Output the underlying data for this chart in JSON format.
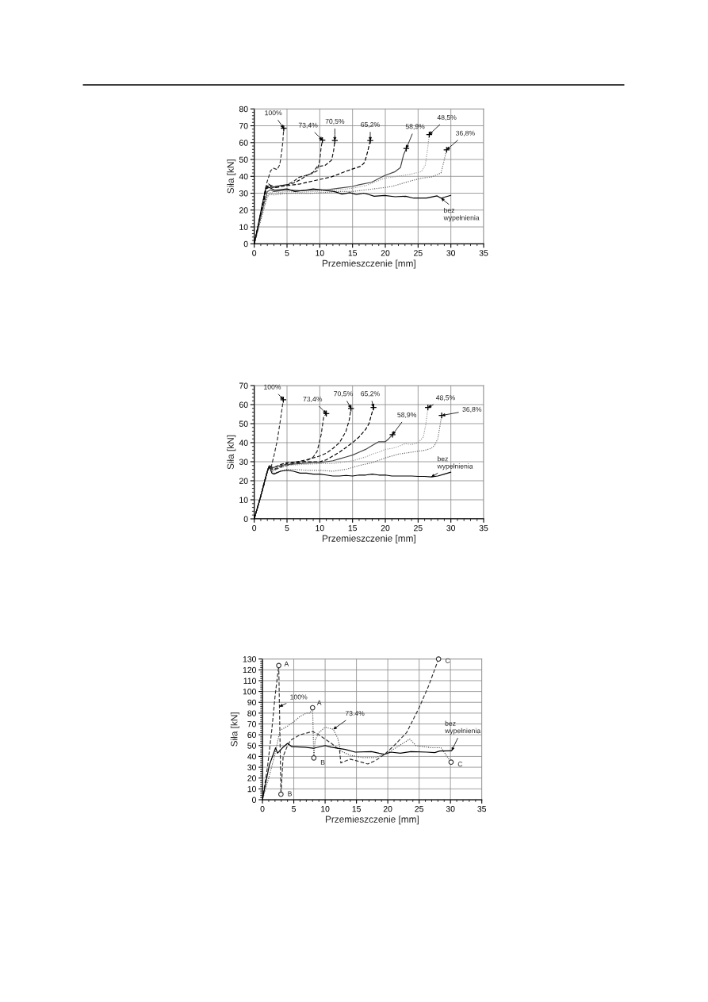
{
  "chart_data": [
    {
      "type": "line",
      "xlabel": "Przemieszczenie [mm]",
      "ylabel": "Siła [kN]",
      "xlim": [
        0,
        35
      ],
      "ylim": [
        0,
        80
      ],
      "xticks": [
        0,
        5,
        10,
        15,
        20,
        25,
        30,
        35
      ],
      "yticks": [
        0,
        10,
        20,
        30,
        40,
        50,
        60,
        70,
        80
      ],
      "grid": true,
      "series": [
        {
          "color": "#333333",
          "line_style": "dashed",
          "x": [
            0,
            0.5,
            1.0,
            1.5,
            1.9,
            2.5,
            2.9,
            3.5,
            3.9,
            4.15,
            4.35,
            4.5
          ],
          "values": [
            0,
            9,
            18,
            28,
            36,
            43.3,
            44.9,
            44,
            47,
            53.5,
            60,
            68.5
          ]
        },
        {
          "color": "#222222",
          "line_style": "dashed",
          "x": [
            0,
            0.5,
            1,
            1.5,
            1.8,
            2.2,
            2.7,
            3.3,
            3.9,
            5,
            6,
            6.8,
            7.8,
            8.8,
            9.6,
            10.0,
            10.2,
            10.4
          ],
          "values": [
            0,
            9,
            18,
            28,
            34,
            35.5,
            34,
            33.4,
            34.5,
            35,
            37,
            39.4,
            40.5,
            41.7,
            43.3,
            49.6,
            57,
            61.5
          ]
        },
        {
          "color": "#111111",
          "line_style": "dashed",
          "x": [
            0,
            0.5,
            1,
            1.5,
            1.8,
            2.2,
            2.7,
            3.3,
            4,
            5,
            6,
            7,
            8,
            9,
            9.6,
            10.8,
            11.8,
            12.1,
            12.3
          ],
          "values": [
            0,
            9,
            18,
            27,
            33,
            35,
            34.5,
            34,
            34.5,
            35,
            36,
            38,
            40.5,
            42.5,
            45.7,
            46.5,
            49.6,
            55,
            61.2
          ]
        },
        {
          "color": "#000000",
          "line_style": "dashed",
          "x": [
            0,
            0.5,
            1,
            1.5,
            1.8,
            2.2,
            2.7,
            3.5,
            5,
            7,
            9,
            11.8,
            14.2,
            16.25,
            16.85,
            17.3,
            17.7
          ],
          "values": [
            0,
            8,
            17,
            26,
            32,
            34.5,
            33.5,
            33.5,
            34.5,
            35.5,
            37.3,
            39.7,
            43.3,
            46,
            48.3,
            54.6,
            61.2
          ]
        },
        {
          "color": "#444444",
          "line_style": "solid",
          "x": [
            0,
            0.5,
            1,
            1.5,
            2,
            2.5,
            3,
            4,
            5,
            7,
            9,
            11,
            13,
            15,
            16,
            17.9,
            19.9,
            21.5,
            22.3,
            22.8,
            23.2
          ],
          "values": [
            0,
            8,
            16,
            24,
            31,
            32,
            31,
            31.5,
            32,
            31.5,
            32,
            32,
            33,
            34,
            35,
            36.5,
            40.5,
            42.8,
            45.2,
            53,
            56.5
          ]
        },
        {
          "color": "#999999",
          "line_style": "dotted",
          "x": [
            0,
            0.5,
            1,
            1.5,
            2,
            2.5,
            3,
            4,
            5,
            7,
            9,
            11,
            13,
            15,
            17,
            19.9,
            21,
            23.9,
            25.5,
            26.1,
            26.5,
            26.7
          ],
          "values": [
            0,
            7,
            15,
            22,
            29,
            30.5,
            30,
            30.5,
            31,
            30.5,
            31,
            31.5,
            32,
            33,
            34.5,
            38.9,
            39.5,
            41.3,
            42.8,
            46.7,
            57.7,
            64.8
          ]
        },
        {
          "color": "#666666",
          "line_style": "dotted",
          "x": [
            0,
            0.5,
            1,
            1.5,
            2,
            2.5,
            3,
            4,
            5,
            7,
            9,
            11,
            13,
            15,
            17,
            19.9,
            21,
            23.9,
            25.5,
            27.1,
            28.5,
            28.9,
            29.35
          ],
          "values": [
            0,
            7,
            14,
            21,
            28,
            29.5,
            29,
            29.5,
            30,
            30,
            30,
            30.5,
            31,
            31,
            32,
            33.4,
            34,
            37.3,
            38.9,
            39.7,
            42,
            48.3,
            55.7
          ]
        },
        {
          "color": "#000000",
          "line_style": "solid",
          "x": [
            0,
            0.5,
            1,
            1.73,
            2.3,
            3.1,
            5,
            6.2,
            7.8,
            9,
            10.6,
            12.2,
            13.4,
            14.6,
            15.6,
            16.7,
            17.5,
            18.3,
            19.9,
            21.5,
            23.1,
            24.3,
            26.3,
            27.9,
            28.5,
            30
          ],
          "values": [
            0,
            9,
            19,
            32.6,
            33.4,
            31.8,
            32.6,
            31,
            31.8,
            32.6,
            31.8,
            31,
            29.5,
            30.3,
            29.2,
            30,
            29.2,
            28.2,
            28.7,
            27.9,
            28.2,
            27.1,
            27.1,
            28.4,
            27.1,
            28.7
          ]
        },
        {
          "type": "scatter",
          "color": "#000000",
          "marker": "cross",
          "x": [
            4.5,
            10.4,
            12.3,
            17.7,
            23.2,
            26.7,
            29.35
          ],
          "values": [
            68.5,
            61.5,
            61.2,
            61.2,
            56.5,
            64.8,
            55.7
          ]
        }
      ],
      "annotations": [
        {
          "text": "100%",
          "x": 4.5,
          "y": 68.5
        },
        {
          "text": "73,4%",
          "x": 10.4,
          "y": 61.5
        },
        {
          "text": "70,5%",
          "x": 12.3,
          "y": 61.2
        },
        {
          "text": "65,2%",
          "x": 17.7,
          "y": 61.2
        },
        {
          "text": "58,9%",
          "x": 23.2,
          "y": 56.5
        },
        {
          "text": "48,5%",
          "x": 26.7,
          "y": 64.8
        },
        {
          "text": "36,8%",
          "x": 29.35,
          "y": 55.7
        },
        {
          "text": "bez\nwypełnienia",
          "x": 28.5,
          "y": 27.1
        }
      ]
    },
    {
      "type": "line",
      "xlabel": "Przemieszczenie [mm]",
      "ylabel": "Siła [kN]",
      "xlim": [
        0,
        35
      ],
      "ylim": [
        0,
        70
      ],
      "xticks": [
        0,
        5,
        10,
        15,
        20,
        25,
        30,
        35
      ],
      "yticks": [
        0,
        10,
        20,
        30,
        40,
        50,
        60,
        70
      ],
      "grid": true,
      "series": [
        {
          "color": "#333333",
          "line_style": "dashed",
          "x": [
            0,
            0.5,
            1,
            1.5,
            2,
            2.3,
            2.6,
            3.0,
            3.5,
            4.0,
            4.44
          ],
          "values": [
            0,
            6,
            12,
            19,
            25,
            28,
            27.5,
            33,
            41,
            52,
            62.6
          ]
        },
        {
          "color": "#222222",
          "line_style": "dashed",
          "x": [
            0,
            0.5,
            1,
            1.5,
            2,
            2.3,
            2.7,
            3,
            4,
            5,
            6,
            7,
            8,
            9,
            9.6,
            10.2,
            10.6,
            11.0
          ],
          "values": [
            0,
            6,
            12,
            18,
            25,
            27.5,
            26,
            25.5,
            27,
            28,
            29,
            29.5,
            30.5,
            32.5,
            35.5,
            44,
            53.6,
            55.3
          ]
        },
        {
          "color": "#111111",
          "line_style": "dashed",
          "x": [
            0,
            1,
            2,
            2.3,
            2.7,
            3,
            4,
            5,
            6,
            8,
            10,
            11,
            12,
            13,
            13.5,
            14,
            14.5,
            14.76
          ],
          "values": [
            0,
            12,
            25,
            28,
            26.5,
            26,
            27.5,
            29,
            29.5,
            31,
            33,
            34.5,
            37,
            40,
            43,
            46,
            52,
            58
          ]
        },
        {
          "color": "#000000",
          "line_style": "dashed",
          "x": [
            0,
            1,
            2,
            2.3,
            2.7,
            3,
            4,
            5,
            7,
            9,
            10,
            11,
            12,
            13,
            14,
            15,
            16,
            17,
            17.5,
            18.2
          ],
          "values": [
            0,
            12,
            25,
            28,
            27,
            27,
            28.5,
            29.5,
            30,
            30,
            30,
            31,
            33,
            35,
            37.5,
            40,
            43,
            47,
            50,
            58.5
          ]
        },
        {
          "color": "#444444",
          "line_style": "solid",
          "x": [
            0,
            1,
            2,
            2.3,
            2.7,
            3,
            4,
            5,
            7,
            9,
            10,
            11,
            12,
            13,
            14,
            15,
            16,
            17,
            18,
            19,
            20,
            20.5,
            21.1
          ],
          "values": [
            0,
            12,
            25,
            28,
            26.5,
            27,
            28,
            28.5,
            29,
            29.5,
            29.5,
            30,
            30.5,
            31.5,
            32.5,
            33.5,
            35,
            36.5,
            38.5,
            40.5,
            40.5,
            42,
            44.2
          ]
        },
        {
          "color": "#999999",
          "line_style": "dotted",
          "x": [
            0,
            1,
            2,
            2.3,
            2.7,
            3,
            4,
            5,
            7,
            10,
            12,
            13,
            14,
            15,
            16,
            17,
            18,
            19,
            20,
            21,
            22,
            23,
            24,
            25,
            25.8,
            26.2,
            26.5
          ],
          "values": [
            0,
            12,
            25,
            27.5,
            25,
            25.5,
            27,
            28,
            28.5,
            29,
            29,
            29.5,
            30,
            30.5,
            31.5,
            32.5,
            34,
            35,
            36.5,
            37,
            38,
            39.5,
            39,
            40,
            43,
            50,
            58.5
          ]
        },
        {
          "color": "#666666",
          "line_style": "dotted",
          "x": [
            0,
            1,
            2,
            2.3,
            2.7,
            3,
            4,
            5,
            6,
            8,
            10,
            12,
            14,
            15,
            16,
            18,
            20,
            22,
            24,
            26,
            27,
            27.5,
            28,
            28.3,
            28.6
          ],
          "values": [
            0,
            12,
            25,
            27.5,
            25,
            24,
            25,
            26,
            26,
            25.5,
            25.5,
            25,
            26,
            27,
            28,
            29.5,
            32,
            34,
            35,
            36,
            37,
            38.5,
            42,
            48,
            54.3
          ]
        },
        {
          "color": "#000000",
          "line_style": "solid",
          "x": [
            0,
            1,
            2,
            2.3,
            2.7,
            3,
            4,
            5,
            6,
            7,
            8,
            9,
            10,
            11,
            12,
            13,
            14,
            15,
            16,
            17,
            18,
            19,
            20,
            21,
            22,
            23,
            24,
            25,
            26,
            27,
            28,
            29,
            30
          ],
          "values": [
            0,
            12,
            25,
            27.5,
            24,
            23.5,
            25,
            25.5,
            25,
            24,
            24,
            23.5,
            23.5,
            23,
            22.5,
            22.5,
            22.8,
            22.5,
            23,
            23,
            23.5,
            23,
            23,
            22.5,
            22.5,
            22.5,
            22.5,
            22.3,
            22.3,
            22,
            22.5,
            23.5,
            24.5
          ]
        },
        {
          "type": "scatter",
          "color": "#000000",
          "marker": "cross",
          "x": [
            4.44,
            11.0,
            14.76,
            18.2,
            21.1,
            26.5,
            28.6
          ],
          "values": [
            62.6,
            55.3,
            58,
            58.5,
            44.2,
            58.5,
            54.3
          ]
        }
      ],
      "annotations": [
        {
          "text": "100%",
          "x": 4.44,
          "y": 62.6
        },
        {
          "text": "73,4%",
          "x": 11.0,
          "y": 55.3
        },
        {
          "text": "70,5%",
          "x": 14.76,
          "y": 58
        },
        {
          "text": "65,2%",
          "x": 18.2,
          "y": 58.5
        },
        {
          "text": "58,9%",
          "x": 21.1,
          "y": 44.2
        },
        {
          "text": "48,5%",
          "x": 26.5,
          "y": 58.5
        },
        {
          "text": "36,8%",
          "x": 28.6,
          "y": 54.3
        },
        {
          "text": "bez\nwypełnienia",
          "x": 27,
          "y": 22
        }
      ]
    },
    {
      "type": "line",
      "xlabel": "Przemieszczenie [mm]",
      "ylabel": "Siła [kN]",
      "xlim": [
        0,
        35
      ],
      "ylim": [
        0,
        130
      ],
      "xticks": [
        0,
        5,
        10,
        15,
        20,
        25,
        30,
        35
      ],
      "yticks": [
        0,
        10,
        20,
        30,
        40,
        50,
        60,
        70,
        80,
        90,
        100,
        110,
        120,
        130
      ],
      "grid": true,
      "series": [
        {
          "color": "#333333",
          "line_style": "dashed",
          "x": [
            0,
            0.8,
            1.5,
            2.0,
            2.6,
            2.95,
            3.3,
            4.0,
            4.5,
            6.0,
            8.0,
            9.0,
            11.0,
            12.3,
            12.5,
            14.0,
            15.0,
            16.8,
            18.0,
            19.5,
            21.0,
            23.0,
            25.0,
            26.5,
            28.1
          ],
          "values": [
            0,
            30,
            65,
            95,
            124,
            5,
            40,
            50,
            55,
            60,
            63,
            60,
            52,
            46,
            34,
            37.5,
            36,
            33,
            36,
            42,
            50,
            62,
            85,
            105,
            130
          ]
        },
        {
          "color": "#555555",
          "line_style": "dotted",
          "x": [
            0,
            1.0,
            2.0,
            2.8,
            4.0,
            5.0,
            6.0,
            7.0,
            7.6,
            8.0,
            8.2,
            8.4,
            9.0,
            10.0,
            11.3,
            12.0,
            12.5,
            14.0,
            16.0,
            18.0,
            19.5,
            21.0,
            23.5,
            24.5,
            27.0,
            28.5,
            30.1
          ],
          "values": [
            0,
            20,
            42,
            64,
            68,
            72,
            77,
            80,
            80,
            85,
            38.6,
            55,
            62,
            67,
            65,
            57,
            45,
            41,
            39,
            39,
            42,
            47,
            56,
            50,
            48,
            48,
            34.7
          ]
        },
        {
          "color": "#000000",
          "line_style": "solid",
          "x": [
            0,
            0.5,
            1.1,
            1.6,
            2.1,
            2.4,
            3.2,
            4.0,
            4.7,
            6.8,
            8.1,
            10,
            11,
            13.2,
            14.8,
            17.4,
            18.6,
            19.5,
            20.5,
            22,
            23.7,
            26.2,
            27.5,
            28.3,
            30.2
          ],
          "values": [
            0,
            15,
            32,
            40,
            48,
            43,
            48,
            52,
            49,
            48.5,
            47.5,
            50,
            48.5,
            46.5,
            44,
            44.5,
            43,
            42,
            44,
            43,
            44.5,
            44,
            43.5,
            45,
            45.2
          ]
        },
        {
          "type": "scatter",
          "color": "#333333",
          "marker": "circle",
          "x": [
            2.6,
            2.95,
            8.0,
            8.2,
            28.1,
            30.1
          ],
          "values": [
            124,
            5,
            85,
            38.6,
            130,
            34.7
          ]
        }
      ],
      "annotations": [
        {
          "text": "A",
          "x": 2.6,
          "y": 124
        },
        {
          "text": "B",
          "x": 2.95,
          "y": 5
        },
        {
          "text": "A",
          "x": 8.0,
          "y": 85
        },
        {
          "text": "B",
          "x": 8.2,
          "y": 38.6
        },
        {
          "text": "C",
          "x": 28.1,
          "y": 130
        },
        {
          "text": "C",
          "x": 30.1,
          "y": 34.7
        },
        {
          "text": "100%",
          "x": 2.7,
          "y": 86
        },
        {
          "text": "73.4%",
          "x": 11.3,
          "y": 65
        },
        {
          "text": "bez\nwypełnienia",
          "x": 30.2,
          "y": 45.2
        }
      ]
    }
  ]
}
